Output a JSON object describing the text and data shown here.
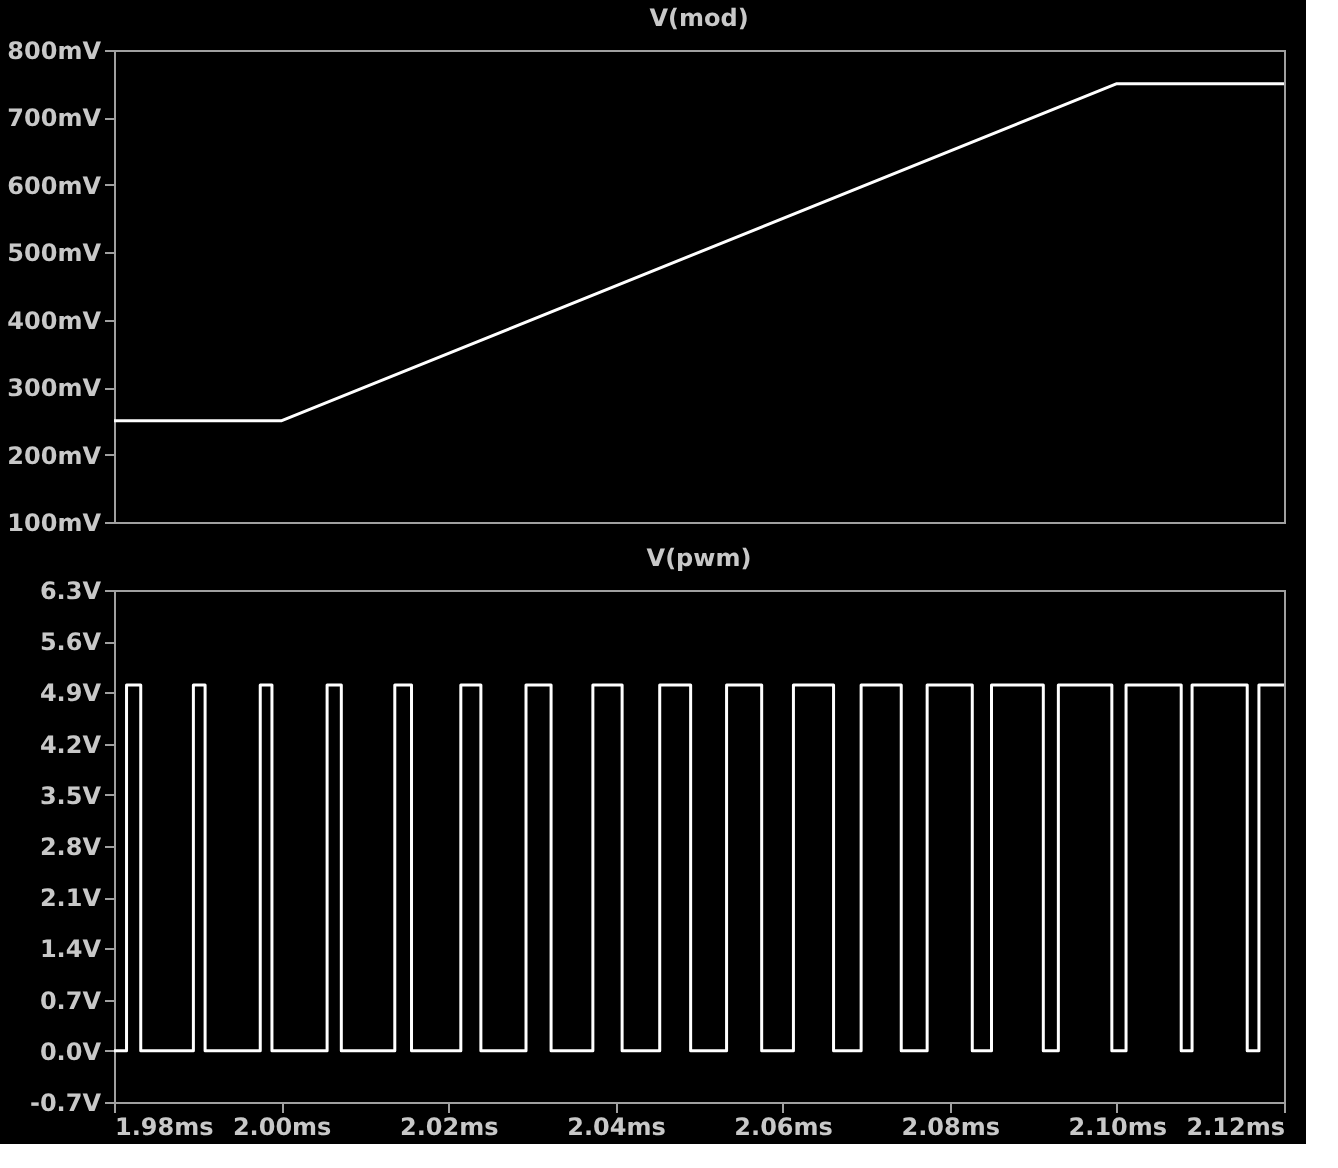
{
  "chart_data": [
    {
      "type": "line",
      "title": "V(mod)",
      "tick_labels": "y",
      "series": [
        {
          "color": "#ffffff",
          "x": [
            1.98,
            2.0,
            2.1,
            2.12
          ],
          "values": [
            250,
            250,
            750,
            750
          ]
        }
      ],
      "xlim": [
        1.98,
        2.12
      ],
      "ylim": [
        100,
        800
      ],
      "yticks": [
        {
          "value": 100,
          "label": "100mV"
        },
        {
          "value": 200,
          "label": "200mV"
        },
        {
          "value": 300,
          "label": "300mV"
        },
        {
          "value": 400,
          "label": "400mV"
        },
        {
          "value": 500,
          "label": "500mV"
        },
        {
          "value": 600,
          "label": "600mV"
        },
        {
          "value": 700,
          "label": "700mV"
        },
        {
          "value": 800,
          "label": "800mV"
        }
      ]
    },
    {
      "type": "step",
      "title": "V(pwm)",
      "series": [
        {
          "color": "#ffffff",
          "x": [
            1.98,
            1.9815,
            1.9832,
            1.9895,
            1.9909,
            1.9975,
            1.9989,
            2.0055,
            2.0072,
            2.0136,
            2.0156,
            2.0215,
            2.0239,
            2.0293,
            2.0323,
            2.0373,
            2.0408,
            2.0453,
            2.049,
            2.0533,
            2.0575,
            2.0613,
            2.0661,
            2.0694,
            2.0742,
            2.0773,
            2.0827,
            2.085,
            2.0912,
            2.093,
            2.0994,
            2.1011,
            2.1077,
            2.109,
            2.1156,
            2.117,
            2.12
          ],
          "values": [
            0,
            5,
            0,
            5,
            0,
            5,
            0,
            5,
            0,
            5,
            0,
            5,
            0,
            5,
            0,
            5,
            0,
            5,
            0,
            5,
            0,
            5,
            0,
            5,
            0,
            5,
            0,
            5,
            0,
            5,
            0,
            5,
            0,
            5,
            0,
            5,
            5
          ]
        }
      ],
      "xlim": [
        1.98,
        2.12
      ],
      "xticks": [
        {
          "value": 1.98,
          "label": "1.98ms"
        },
        {
          "value": 2.0,
          "label": "2.00ms"
        },
        {
          "value": 2.02,
          "label": "2.02ms"
        },
        {
          "value": 2.04,
          "label": "2.04ms"
        },
        {
          "value": 2.06,
          "label": "2.06ms"
        },
        {
          "value": 2.08,
          "label": "2.08ms"
        },
        {
          "value": 2.1,
          "label": "2.10ms"
        },
        {
          "value": 2.12,
          "label": "2.12ms"
        }
      ],
      "ylim": [
        -0.7,
        6.3
      ],
      "yticks": [
        {
          "value": -0.7,
          "label": "-0.7V"
        },
        {
          "value": 0.0,
          "label": "0.0V"
        },
        {
          "value": 0.7,
          "label": "0.7V"
        },
        {
          "value": 1.4,
          "label": "1.4V"
        },
        {
          "value": 2.1,
          "label": "2.1V"
        },
        {
          "value": 2.8,
          "label": "2.8V"
        },
        {
          "value": 3.5,
          "label": "3.5V"
        },
        {
          "value": 4.2,
          "label": "4.2V"
        },
        {
          "value": 4.9,
          "label": "4.9V"
        },
        {
          "value": 5.6,
          "label": "5.6V"
        },
        {
          "value": 6.3,
          "label": "6.3V"
        }
      ]
    }
  ]
}
